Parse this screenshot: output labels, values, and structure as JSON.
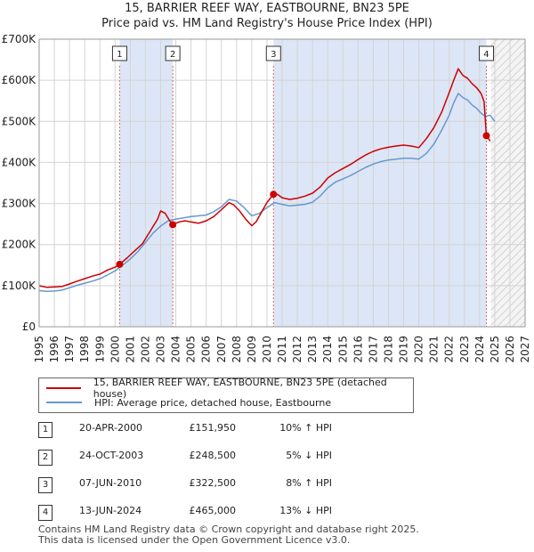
{
  "chart_data": {
    "type": "line",
    "title": "15, BARRIER REEF WAY, EASTBOURNE, BN23 5PE",
    "subtitle": "Price paid vs. HM Land Registry's House Price Index (HPI)",
    "xlim": [
      1995,
      2027
    ],
    "ylim": [
      0,
      700000
    ],
    "y_ticks": [
      0,
      100000,
      200000,
      300000,
      400000,
      500000,
      600000,
      700000
    ],
    "y_tick_labels": [
      "£0",
      "£100K",
      "£200K",
      "£300K",
      "£400K",
      "£500K",
      "£600K",
      "£700K"
    ],
    "x_ticks": [
      1995,
      1996,
      1997,
      1998,
      1999,
      2000,
      2001,
      2002,
      2003,
      2004,
      2005,
      2006,
      2007,
      2008,
      2009,
      2010,
      2011,
      2012,
      2013,
      2014,
      2015,
      2016,
      2017,
      2018,
      2019,
      2020,
      2021,
      2022,
      2023,
      2024,
      2025,
      2026,
      2027
    ],
    "grid": true,
    "shaded_periods": [
      [
        2000.3,
        2003.8
      ],
      [
        2010.43,
        2024.45
      ]
    ],
    "forecast_hatch_from": 2024.75,
    "series": [
      {
        "name": "15, BARRIER REEF WAY, EASTBOURNE, BN23 5PE (detached house)",
        "color": "#cc0000",
        "x": [
          1995.0,
          1995.5,
          1996.0,
          1996.5,
          1997.0,
          1997.5,
          1998.0,
          1998.5,
          1999.0,
          1999.5,
          2000.0,
          2000.3,
          2000.8,
          2001.3,
          2001.8,
          2002.3,
          2002.8,
          2003.0,
          2003.3,
          2003.6,
          2003.8,
          2004.2,
          2004.6,
          2005.0,
          2005.5,
          2006.0,
          2006.5,
          2007.0,
          2007.5,
          2007.8,
          2008.2,
          2008.6,
          2009.0,
          2009.3,
          2009.6,
          2010.0,
          2010.43,
          2010.7,
          2011.0,
          2011.5,
          2012.0,
          2012.5,
          2013.0,
          2013.5,
          2014.0,
          2014.5,
          2015.0,
          2015.5,
          2016.0,
          2016.5,
          2017.0,
          2017.5,
          2018.0,
          2018.5,
          2019.0,
          2019.5,
          2020.0,
          2020.5,
          2021.0,
          2021.5,
          2022.0,
          2022.3,
          2022.6,
          2022.9,
          2023.2,
          2023.5,
          2023.8,
          2024.1,
          2024.3,
          2024.45,
          2024.7
        ],
        "values": [
          100000,
          96000,
          97000,
          98000,
          104000,
          111000,
          117000,
          123000,
          128000,
          138000,
          145000,
          151950,
          168000,
          185000,
          202000,
          232000,
          262000,
          282000,
          276000,
          258000,
          248500,
          255000,
          258000,
          255000,
          252000,
          258000,
          268000,
          285000,
          302000,
          297000,
          282000,
          262000,
          246000,
          256000,
          276000,
          302000,
          322500,
          322000,
          314000,
          310000,
          313000,
          318000,
          325000,
          340000,
          362000,
          375000,
          385000,
          395000,
          407000,
          418000,
          427000,
          433000,
          437000,
          440000,
          442000,
          440000,
          436000,
          458000,
          485000,
          522000,
          570000,
          600000,
          628000,
          612000,
          605000,
          592000,
          582000,
          568000,
          548000,
          465000,
          452000
        ]
      },
      {
        "name": "HPI: Average price, detached house, Eastbourne",
        "color": "#6699cc",
        "x": [
          1995.0,
          1995.5,
          1996.0,
          1996.5,
          1997.0,
          1997.5,
          1998.0,
          1998.5,
          1999.0,
          1999.5,
          2000.0,
          2000.5,
          2001.0,
          2001.5,
          2002.0,
          2002.5,
          2003.0,
          2003.5,
          2004.0,
          2004.5,
          2005.0,
          2005.5,
          2006.0,
          2006.5,
          2007.0,
          2007.5,
          2008.0,
          2008.5,
          2009.0,
          2009.5,
          2010.0,
          2010.5,
          2011.0,
          2011.5,
          2012.0,
          2012.5,
          2013.0,
          2013.5,
          2014.0,
          2014.5,
          2015.0,
          2015.5,
          2016.0,
          2016.5,
          2017.0,
          2017.5,
          2018.0,
          2018.5,
          2019.0,
          2019.5,
          2020.0,
          2020.5,
          2021.0,
          2021.5,
          2022.0,
          2022.3,
          2022.6,
          2022.9,
          2023.2,
          2023.5,
          2023.8,
          2024.1,
          2024.4,
          2024.7,
          2025.0
        ],
        "values": [
          88000,
          86000,
          87000,
          89000,
          95000,
          101000,
          106000,
          111000,
          117000,
          126000,
          136000,
          150000,
          165000,
          183000,
          205000,
          228000,
          245000,
          258000,
          262000,
          265000,
          268000,
          270000,
          272000,
          280000,
          292000,
          310000,
          306000,
          290000,
          270000,
          276000,
          290000,
          302000,
          298000,
          294000,
          296000,
          298000,
          303000,
          318000,
          338000,
          352000,
          360000,
          368000,
          378000,
          388000,
          396000,
          402000,
          406000,
          408000,
          410000,
          410000,
          408000,
          422000,
          445000,
          478000,
          515000,
          545000,
          568000,
          558000,
          552000,
          540000,
          532000,
          520000,
          512000,
          515000,
          500000
        ]
      }
    ],
    "markers": [
      {
        "label": "1",
        "x": 2000.3,
        "y": 151950
      },
      {
        "label": "2",
        "x": 2003.8,
        "y": 248500
      },
      {
        "label": "3",
        "x": 2010.43,
        "y": 322500
      },
      {
        "label": "4",
        "x": 2024.45,
        "y": 465000
      }
    ]
  },
  "legend": {
    "property_label": "15, BARRIER REEF WAY, EASTBOURNE, BN23 5PE (detached house)",
    "hpi_label": "HPI: Average price, detached house, Eastbourne"
  },
  "transactions": [
    {
      "num": "1",
      "date": "20-APR-2000",
      "price": "£151,950",
      "hpi": "10% ↑ HPI"
    },
    {
      "num": "2",
      "date": "24-OCT-2003",
      "price": "£248,500",
      "hpi": "5% ↓ HPI"
    },
    {
      "num": "3",
      "date": "07-JUN-2010",
      "price": "£322,500",
      "hpi": "8% ↑ HPI"
    },
    {
      "num": "4",
      "date": "13-JUN-2024",
      "price": "£465,000",
      "hpi": "13% ↓ HPI"
    }
  ],
  "footer": {
    "line1": "Contains HM Land Registry data © Crown copyright and database right 2025.",
    "line2": "This data is licensed under the Open Government Licence v3.0."
  },
  "colors": {
    "property": "#cc0000",
    "hpi": "#6699cc",
    "shade": "#dde6f6"
  }
}
